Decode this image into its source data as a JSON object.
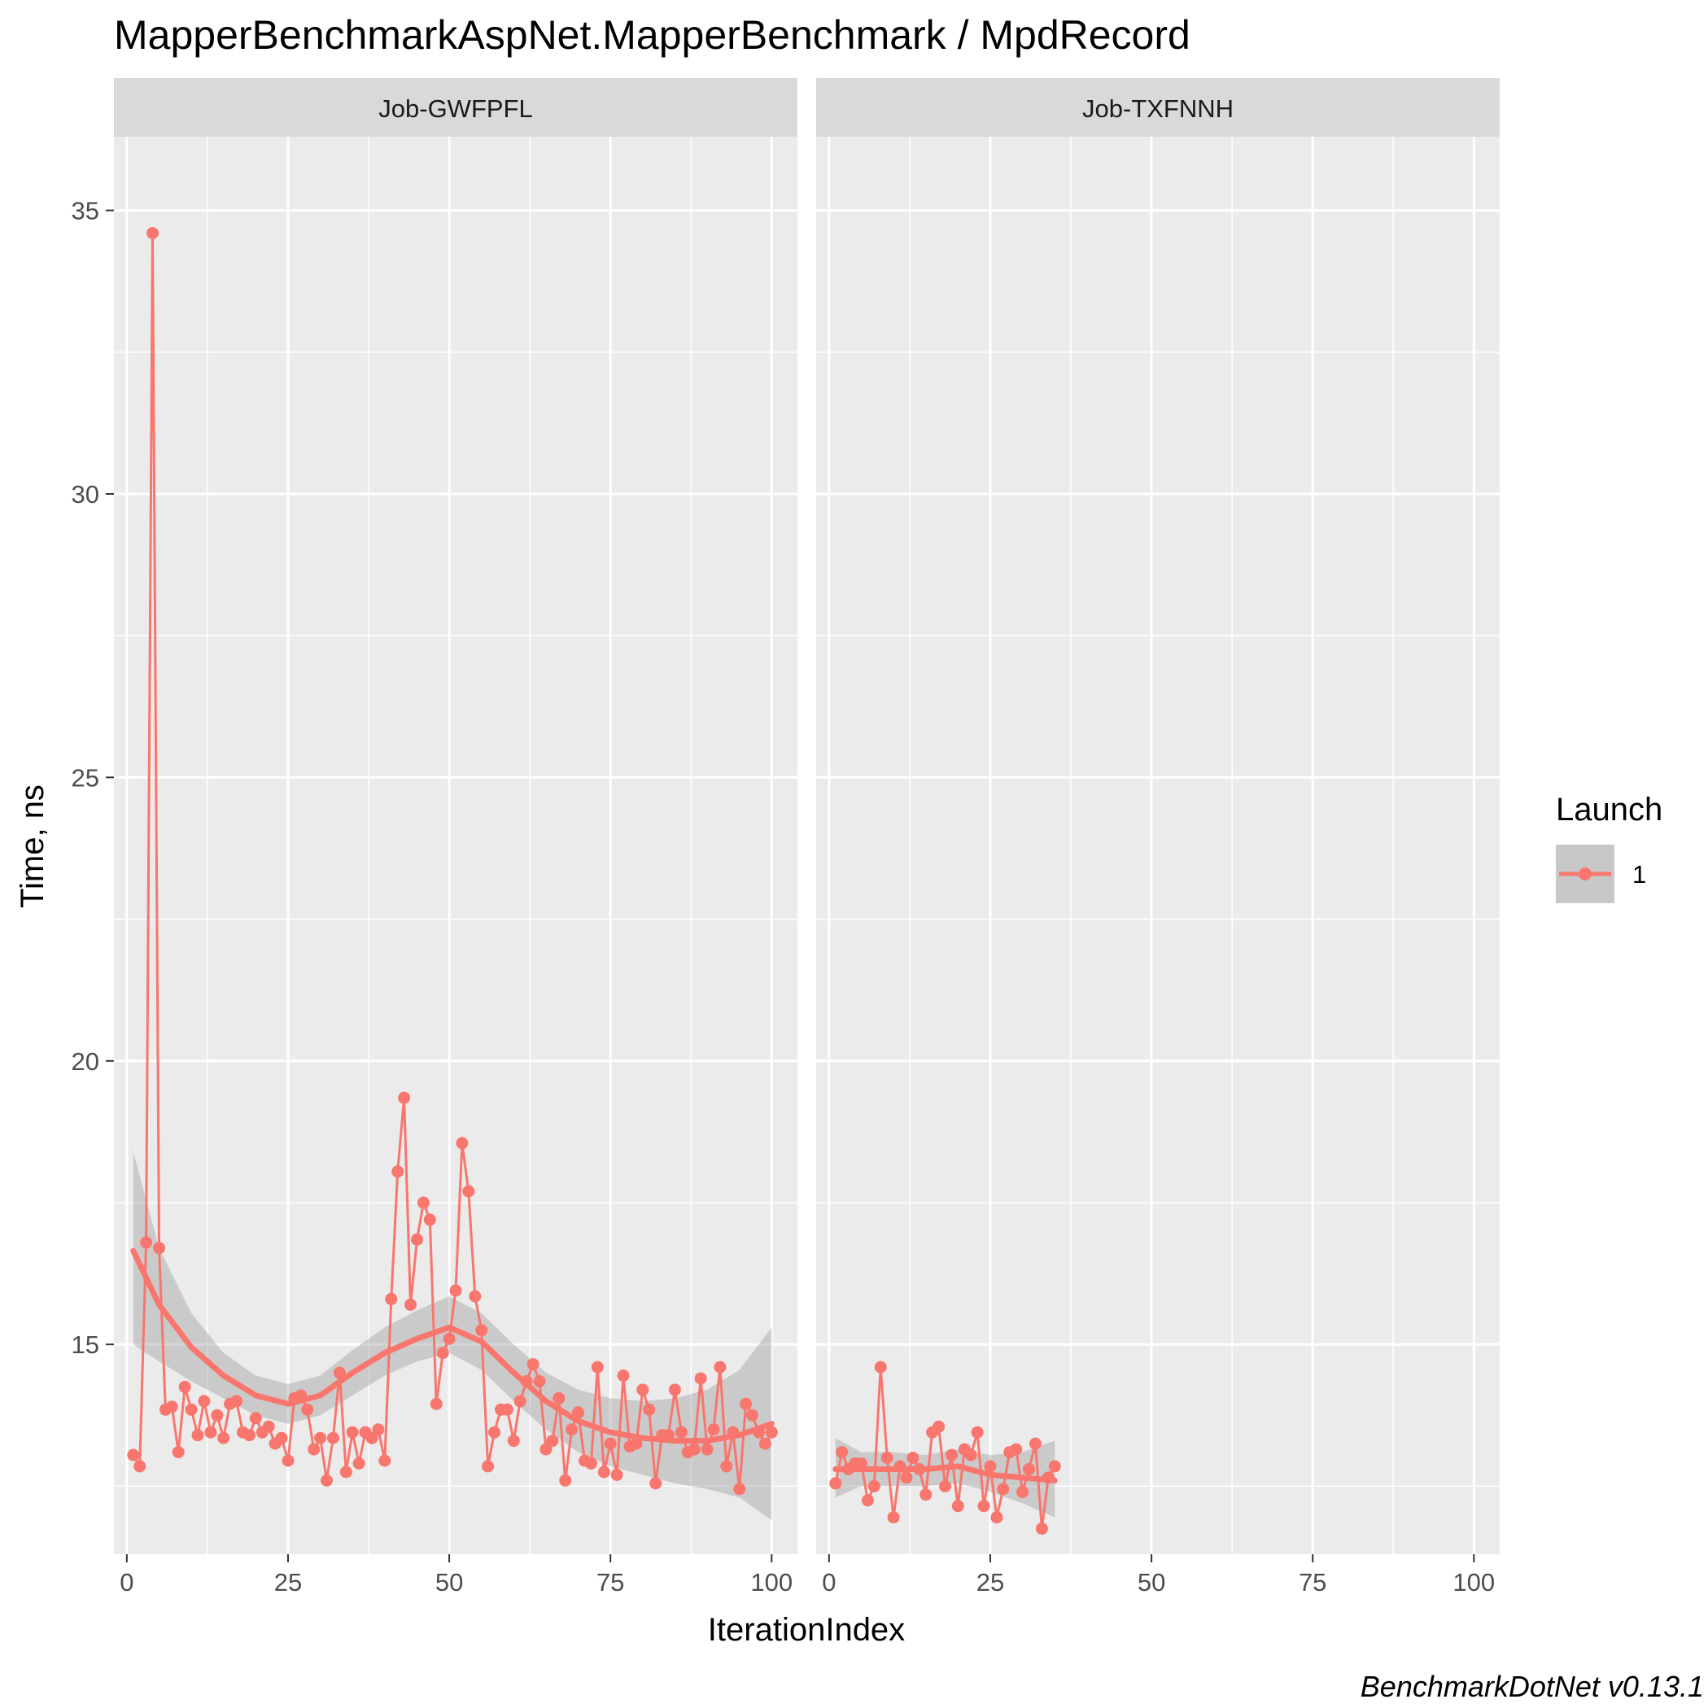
{
  "chart_data": {
    "type": "line",
    "title": "MapperBenchmarkAspNet.MapperBenchmark / MpdRecord",
    "xlabel": "IterationIndex",
    "ylabel": "Time, ns",
    "caption": "BenchmarkDotNet v0.13.1",
    "xlim": [
      -2,
      104
    ],
    "ylim": [
      11.3,
      36.3
    ],
    "x_ticks": [
      0,
      25,
      50,
      75,
      100
    ],
    "y_ticks": [
      15,
      20,
      25,
      30,
      35
    ],
    "grid": true,
    "legend": {
      "title": "Launch",
      "position": "right",
      "entries": [
        "1"
      ]
    },
    "colors": {
      "series": "#f8766d",
      "panel_bg": "#ebebeb",
      "grid": "#ffffff",
      "strip_bg": "#d9d9d9",
      "ribbon": "#999999"
    },
    "facets": [
      {
        "label": "Job-GWFPFL",
        "series": [
          {
            "name": "1",
            "x": [
              1,
              2,
              3,
              4,
              5,
              6,
              7,
              8,
              9,
              10,
              11,
              12,
              13,
              14,
              15,
              16,
              17,
              18,
              19,
              20,
              21,
              22,
              23,
              24,
              25,
              26,
              27,
              28,
              29,
              30,
              31,
              32,
              33,
              34,
              35,
              36,
              37,
              38,
              39,
              40,
              41,
              42,
              43,
              44,
              45,
              46,
              47,
              48,
              49,
              50,
              51,
              52,
              53,
              54,
              55,
              56,
              57,
              58,
              59,
              60,
              61,
              62,
              63,
              64,
              65,
              66,
              67,
              68,
              69,
              70,
              71,
              72,
              73,
              74,
              75,
              76,
              77,
              78,
              79,
              80,
              81,
              82,
              83,
              84,
              85,
              86,
              87,
              88,
              89,
              90,
              91,
              92,
              93,
              94,
              95,
              96,
              97,
              98,
              99,
              100
            ],
            "y": [
              13.05,
              12.85,
              16.8,
              34.6,
              16.7,
              13.85,
              13.9,
              13.1,
              14.25,
              13.85,
              13.4,
              14.0,
              13.45,
              13.75,
              13.35,
              13.95,
              14.0,
              13.45,
              13.4,
              13.7,
              13.45,
              13.55,
              13.25,
              13.35,
              12.95,
              14.05,
              14.1,
              13.85,
              13.15,
              13.35,
              12.6,
              13.35,
              14.5,
              12.75,
              13.45,
              12.9,
              13.45,
              13.35,
              13.5,
              12.95,
              15.8,
              18.05,
              19.35,
              15.7,
              16.85,
              17.5,
              17.2,
              13.95,
              14.85,
              15.1,
              15.95,
              18.55,
              17.7,
              15.85,
              15.25,
              12.85,
              13.45,
              13.85,
              13.85,
              13.3,
              14.0,
              14.35,
              14.65,
              14.35,
              13.15,
              13.3,
              14.05,
              12.6,
              13.5,
              13.8,
              12.95,
              12.9,
              14.6,
              12.75,
              13.25,
              12.7,
              14.45,
              13.2,
              13.25,
              14.2,
              13.85,
              12.55,
              13.4,
              13.4,
              14.2,
              13.45,
              13.1,
              13.15,
              14.4,
              13.15,
              13.5,
              14.6,
              12.85,
              13.45,
              12.45,
              13.95,
              13.75,
              13.45,
              13.25,
              13.45
            ]
          }
        ],
        "smooth": {
          "x": [
            1,
            5,
            10,
            15,
            20,
            25,
            30,
            35,
            40,
            45,
            50,
            55,
            60,
            65,
            70,
            75,
            80,
            85,
            90,
            95,
            100
          ],
          "y": [
            16.65,
            15.7,
            14.95,
            14.45,
            14.1,
            13.95,
            14.1,
            14.5,
            14.85,
            15.1,
            15.3,
            15.05,
            14.5,
            14.0,
            13.65,
            13.45,
            13.35,
            13.3,
            13.3,
            13.4,
            13.6
          ],
          "lower": [
            15.0,
            14.7,
            14.35,
            14.05,
            13.75,
            13.6,
            13.75,
            14.1,
            14.45,
            14.7,
            14.85,
            14.55,
            14.0,
            13.5,
            13.1,
            12.85,
            12.7,
            12.55,
            12.45,
            12.3,
            11.9
          ],
          "upper": [
            18.4,
            16.7,
            15.55,
            14.85,
            14.45,
            14.3,
            14.45,
            14.9,
            15.3,
            15.6,
            15.85,
            15.55,
            15.0,
            14.5,
            14.2,
            14.05,
            14.0,
            14.05,
            14.2,
            14.55,
            15.3
          ]
        }
      },
      {
        "label": "Job-TXFNNH",
        "series": [
          {
            "name": "1",
            "x": [
              1,
              2,
              3,
              4,
              5,
              6,
              7,
              8,
              9,
              10,
              11,
              12,
              13,
              14,
              15,
              16,
              17,
              18,
              19,
              20,
              21,
              22,
              23,
              24,
              25,
              26,
              27,
              28,
              29,
              30,
              31,
              32,
              33,
              34,
              35
            ],
            "y": [
              12.55,
              13.1,
              12.8,
              12.9,
              12.9,
              12.25,
              12.5,
              14.6,
              13.0,
              11.95,
              12.85,
              12.65,
              13.0,
              12.8,
              12.35,
              13.45,
              13.55,
              12.5,
              13.05,
              12.15,
              13.15,
              13.05,
              13.45,
              12.15,
              12.85,
              11.95,
              12.45,
              13.1,
              13.15,
              12.4,
              12.8,
              13.25,
              11.75,
              12.65,
              12.85
            ]
          }
        ],
        "smooth": {
          "x": [
            1,
            5,
            10,
            15,
            20,
            25,
            30,
            35
          ],
          "y": [
            12.8,
            12.8,
            12.8,
            12.8,
            12.85,
            12.7,
            12.65,
            12.6
          ],
          "lower": [
            12.3,
            12.5,
            12.5,
            12.5,
            12.55,
            12.4,
            12.2,
            11.95
          ],
          "upper": [
            13.35,
            13.1,
            13.1,
            13.05,
            13.15,
            13.05,
            13.1,
            13.3
          ]
        }
      }
    ]
  }
}
